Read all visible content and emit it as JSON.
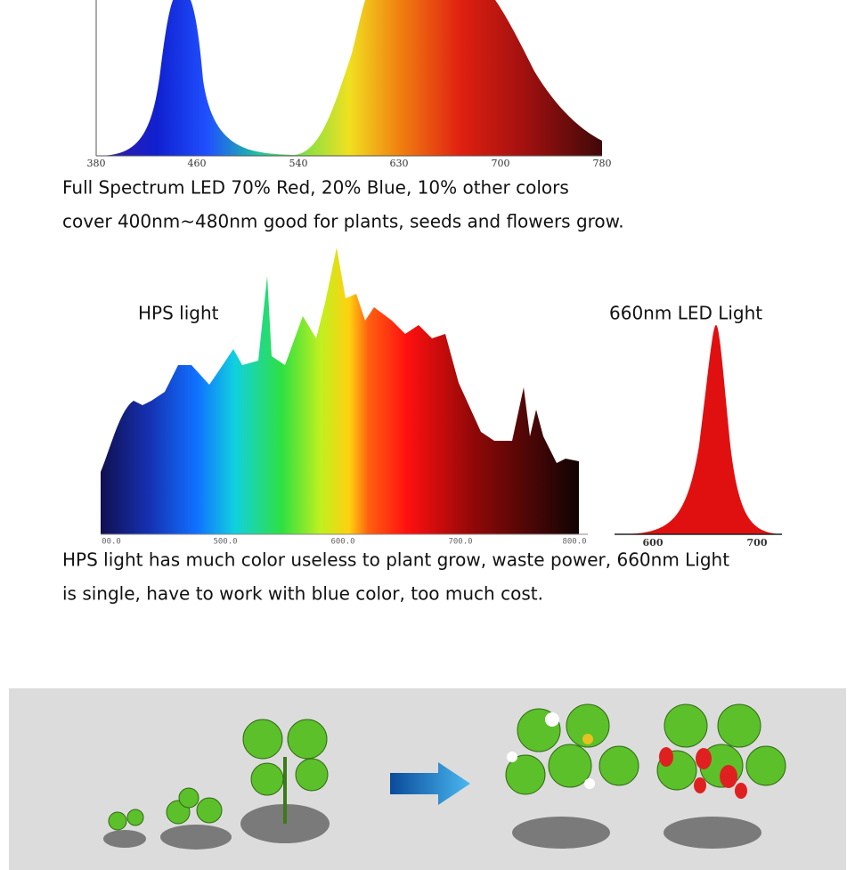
{
  "spectrum_chart": {
    "axis_labels": [
      "380",
      "460",
      "540",
      "630",
      "700",
      "780"
    ]
  },
  "caption_1": [
    "Full Spectrum LED 70% Red, 20% Blue, 10% other colors",
    "cover 400nm~480nm good for plants, seeds and flowers grow."
  ],
  "comparison": {
    "hps_label": "HPS light",
    "hps_axis_labels": [
      "00.0",
      "500.0",
      "600.0",
      "700.0",
      "800.0"
    ],
    "led_label": "660nm LED Light",
    "led_axis_labels": [
      "600",
      "700"
    ]
  },
  "caption_2": [
    "HPS light has much color useless to plant grow, waste power, 660nm Light",
    "is single, have to work with blue color, too much cost."
  ]
}
